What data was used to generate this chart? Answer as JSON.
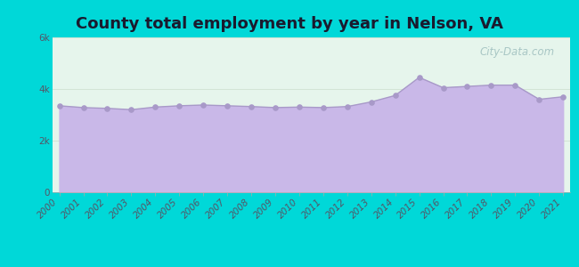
{
  "title": "County total employment by year in Nelson, VA",
  "years": [
    2000,
    2001,
    2002,
    2003,
    2004,
    2005,
    2006,
    2007,
    2008,
    2009,
    2010,
    2011,
    2012,
    2013,
    2014,
    2015,
    2016,
    2017,
    2018,
    2019,
    2020,
    2021
  ],
  "values": [
    3350,
    3280,
    3250,
    3200,
    3300,
    3350,
    3380,
    3350,
    3320,
    3280,
    3300,
    3280,
    3320,
    3500,
    3750,
    4450,
    4050,
    4100,
    4150,
    4150,
    3600,
    3700
  ],
  "ylim": [
    0,
    6000
  ],
  "yticks": [
    0,
    2000,
    4000,
    6000
  ],
  "ytick_labels": [
    "0",
    "2k",
    "4k",
    "6k"
  ],
  "fill_color": "#c9b8e8",
  "line_color": "#a899c8",
  "marker_color": "#a899c8",
  "background_outer": "#00d8d8",
  "background_plot": "#e6f5ec",
  "title_fontsize": 13,
  "title_fontweight": "bold",
  "title_color": "#1a1a2e",
  "watermark_text": "City-Data.com",
  "tick_color": "#555566",
  "tick_fontsize": 7.5
}
